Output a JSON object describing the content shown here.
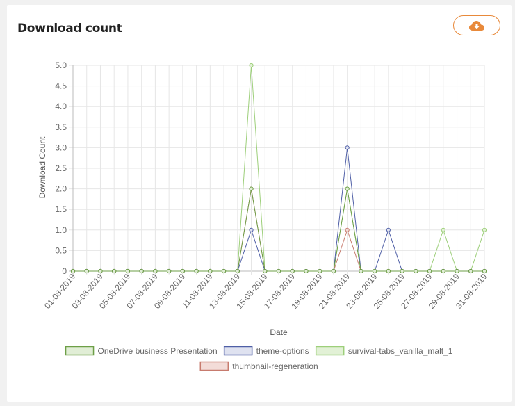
{
  "card": {
    "title": "Download count",
    "download_icon": "cloud-download-icon",
    "download_color": "#e8893a"
  },
  "chart_data": {
    "type": "line",
    "title": "",
    "xlabel": "Date",
    "ylabel": "Download Count",
    "ylim": [
      0,
      5
    ],
    "y_ticks": [
      "0",
      "0.5",
      "1.0",
      "1.5",
      "2.0",
      "2.5",
      "3.0",
      "3.5",
      "4.0",
      "4.5",
      "5.0"
    ],
    "grid": true,
    "legend_position": "bottom",
    "x": [
      "01-08-2019",
      "02-08-2019",
      "03-08-2019",
      "04-08-2019",
      "05-08-2019",
      "06-08-2019",
      "07-08-2019",
      "08-08-2019",
      "09-08-2019",
      "10-08-2019",
      "11-08-2019",
      "12-08-2019",
      "13-08-2019",
      "14-08-2019",
      "15-08-2019",
      "16-08-2019",
      "17-08-2019",
      "18-08-2019",
      "19-08-2019",
      "20-08-2019",
      "21-08-2019",
      "22-08-2019",
      "23-08-2019",
      "24-08-2019",
      "25-08-2019",
      "26-08-2019",
      "27-08-2019",
      "28-08-2019",
      "29-08-2019",
      "30-08-2019",
      "31-08-2019"
    ],
    "x_tick_labels": [
      "01-08-2019",
      "03-08-2019",
      "05-08-2019",
      "07-08-2019",
      "09-08-2019",
      "11-08-2019",
      "13-08-2019",
      "15-08-2019",
      "17-08-2019",
      "19-08-2019",
      "21-08-2019",
      "23-08-2019",
      "25-08-2019",
      "27-08-2019",
      "29-08-2019",
      "31-08-2019"
    ],
    "series": [
      {
        "name": "survival-tabs_vanilla_malt_1",
        "color": "#9dcf7a",
        "fill": "#e2f1d6",
        "values": [
          0,
          0,
          0,
          0,
          0,
          0,
          0,
          0,
          0,
          0,
          0,
          0,
          0,
          5,
          0,
          0,
          0,
          0,
          0,
          0,
          2,
          0,
          0,
          0,
          0,
          0,
          0,
          1,
          0,
          0,
          1
        ]
      },
      {
        "name": "thumbnail-regeneration",
        "color": "#c77b6e",
        "fill": "#f3dcd8",
        "values": [
          0,
          0,
          0,
          0,
          0,
          0,
          0,
          0,
          0,
          0,
          0,
          0,
          0,
          2,
          0,
          0,
          0,
          0,
          0,
          0,
          1,
          0,
          0,
          0,
          0,
          0,
          0,
          0,
          0,
          0,
          0
        ]
      },
      {
        "name": "theme-options",
        "color": "#4f5fa6",
        "fill": "#dfe2f0",
        "values": [
          0,
          0,
          0,
          0,
          0,
          0,
          0,
          0,
          0,
          0,
          0,
          0,
          0,
          1,
          0,
          0,
          0,
          0,
          0,
          0,
          3,
          0,
          0,
          1,
          0,
          0,
          0,
          0,
          0,
          0,
          0
        ]
      },
      {
        "name": "OneDrive business Presentation",
        "color": "#6d9f47",
        "fill": "#e1eed6",
        "values": [
          0,
          0,
          0,
          0,
          0,
          0,
          0,
          0,
          0,
          0,
          0,
          0,
          0,
          2,
          0,
          0,
          0,
          0,
          0,
          0,
          2,
          0,
          0,
          0,
          0,
          0,
          0,
          0,
          0,
          0,
          0
        ]
      }
    ],
    "legend_order": [
      "OneDrive business Presentation",
      "theme-options",
      "survival-tabs_vanilla_malt_1",
      "thumbnail-regeneration"
    ]
  }
}
